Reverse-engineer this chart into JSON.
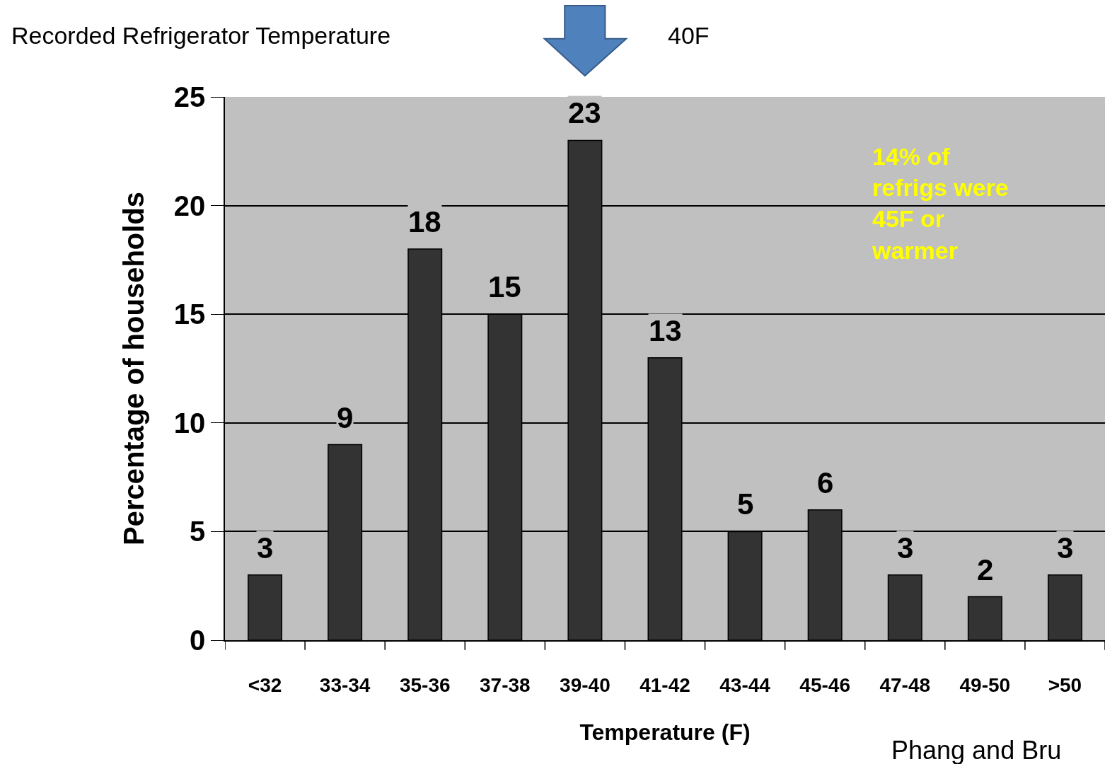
{
  "chart_data": {
    "type": "bar",
    "ylabel": "Percentage of households",
    "xlabel": "Temperature (F)",
    "categories": [
      "<32",
      "33-34",
      "35-36",
      "37-38",
      "39-40",
      "41-42",
      "43-44",
      "45-46",
      "47-48",
      "49-50",
      ">50"
    ],
    "values": [
      3,
      9,
      18,
      15,
      23,
      13,
      5,
      6,
      3,
      2,
      3
    ],
    "color": "#333333",
    "ylim": [
      0,
      25
    ],
    "yticks": [
      0,
      5,
      10,
      15,
      20,
      25
    ],
    "grid": "y",
    "data_labels": true,
    "annotations": [
      "Recorded Refrigerator Temperature",
      "40F",
      "14% of refrigs were 45F or warmer",
      "Phang and Bru"
    ]
  }
}
